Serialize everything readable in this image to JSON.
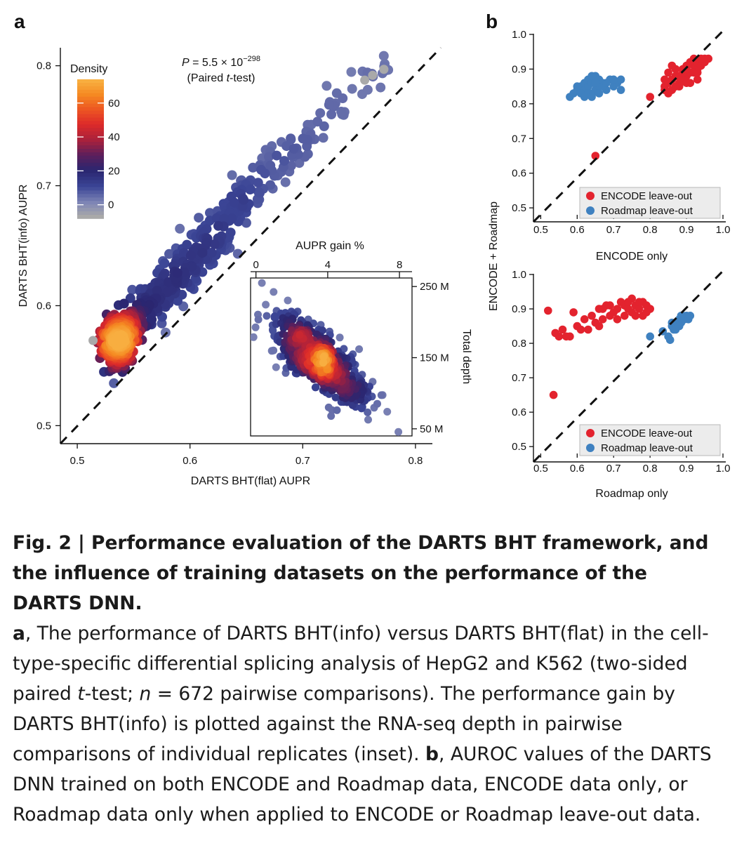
{
  "figure": {
    "panel_a": "a",
    "panel_b": "b"
  },
  "chart_data": [
    {
      "id": "a-main",
      "type": "scatter",
      "xlabel": "DARTS BHT(flat) AUPR",
      "ylabel": "DARTS BHT(info) AUPR",
      "xlim": [
        0.485,
        0.815
      ],
      "ylim": [
        0.485,
        0.815
      ],
      "xticks": [
        "0.5",
        "0.6",
        "0.7",
        "0.8"
      ],
      "yticks": [
        "0.5",
        "0.6",
        "0.7",
        "0.8"
      ],
      "diagonal": true,
      "annotation": {
        "p_prefix": "P",
        "p_value": " = 5.5 × 10",
        "p_exp": "−298",
        "test_open": "(Paired ",
        "test_t": "t",
        "test_close": "-test)"
      },
      "colorbar": {
        "title": "Density",
        "ticks": [
          "0",
          "20",
          "40",
          "60"
        ],
        "range": [
          -8,
          74
        ]
      },
      "outliers": [
        [
          0.514,
          0.571
        ],
        [
          0.755,
          0.788
        ],
        [
          0.762,
          0.792
        ],
        [
          0.772,
          0.797
        ]
      ],
      "point_count": 672
    },
    {
      "id": "a-inset",
      "type": "scatter",
      "xlabel": "AUPR gain %",
      "ylabel": "Total depth",
      "xlim": [
        -0.3,
        8.7
      ],
      "ylim": [
        40,
        262
      ],
      "xticks": [
        "0",
        "4",
        "8"
      ],
      "yticks": [
        "250 M",
        "150 M",
        "50 M"
      ]
    },
    {
      "id": "b-top",
      "type": "scatter",
      "xlabel": "ENCODE only",
      "xlim": [
        0.48,
        1.0
      ],
      "ylim": [
        0.48,
        1.0
      ],
      "xticks": [
        "0.5",
        "0.6",
        "0.7",
        "0.8",
        "0.9",
        "1.0"
      ],
      "yticks": [
        "0.5",
        "0.6",
        "0.7",
        "0.8",
        "0.9",
        "1.0"
      ],
      "legend": "bottom-right",
      "series": [
        {
          "name": "ENCODE leave-out",
          "color": "#e3232e",
          "points": [
            [
              0.65,
              0.65
            ],
            [
              0.8,
              0.82
            ],
            [
              0.84,
              0.85
            ],
            [
              0.85,
              0.83
            ],
            [
              0.86,
              0.84
            ],
            [
              0.87,
              0.88
            ],
            [
              0.88,
              0.86
            ],
            [
              0.89,
              0.9
            ],
            [
              0.9,
              0.88
            ],
            [
              0.91,
              0.89
            ],
            [
              0.92,
              0.91
            ],
            [
              0.93,
              0.9
            ],
            [
              0.94,
              0.92
            ],
            [
              0.95,
              0.93
            ],
            [
              0.96,
              0.93
            ],
            [
              0.84,
              0.87
            ],
            [
              0.85,
              0.89
            ],
            [
              0.86,
              0.87
            ],
            [
              0.87,
              0.9
            ],
            [
              0.88,
              0.88
            ],
            [
              0.89,
              0.87
            ],
            [
              0.9,
              0.91
            ],
            [
              0.91,
              0.92
            ],
            [
              0.92,
              0.89
            ],
            [
              0.93,
              0.92
            ],
            [
              0.94,
              0.91
            ],
            [
              0.95,
              0.92
            ],
            [
              0.86,
              0.91
            ],
            [
              0.88,
              0.85
            ],
            [
              0.9,
              0.86
            ],
            [
              0.91,
              0.86
            ],
            [
              0.93,
              0.87
            ],
            [
              0.84,
              0.84
            ],
            [
              0.87,
              0.85
            ],
            [
              0.89,
              0.89
            ],
            [
              0.92,
              0.93
            ],
            [
              0.94,
              0.93
            ],
            [
              0.85,
              0.86
            ],
            [
              0.93,
              0.89
            ],
            [
              0.9,
              0.9
            ]
          ]
        },
        {
          "name": "Roadmap leave-out",
          "color": "#3f81c0",
          "points": [
            [
              0.58,
              0.82
            ],
            [
              0.59,
              0.83
            ],
            [
              0.6,
              0.84
            ],
            [
              0.61,
              0.85
            ],
            [
              0.62,
              0.86
            ],
            [
              0.62,
              0.84
            ],
            [
              0.63,
              0.85
            ],
            [
              0.63,
              0.87
            ],
            [
              0.64,
              0.86
            ],
            [
              0.64,
              0.83
            ],
            [
              0.65,
              0.88
            ],
            [
              0.65,
              0.84
            ],
            [
              0.66,
              0.87
            ],
            [
              0.66,
              0.85
            ],
            [
              0.67,
              0.86
            ],
            [
              0.68,
              0.84
            ],
            [
              0.69,
              0.87
            ],
            [
              0.7,
              0.85
            ],
            [
              0.71,
              0.86
            ],
            [
              0.72,
              0.84
            ],
            [
              0.72,
              0.87
            ],
            [
              0.6,
              0.85
            ],
            [
              0.61,
              0.83
            ],
            [
              0.63,
              0.83
            ],
            [
              0.64,
              0.88
            ],
            [
              0.65,
              0.86
            ],
            [
              0.66,
              0.83
            ],
            [
              0.67,
              0.85
            ],
            [
              0.68,
              0.86
            ],
            [
              0.7,
              0.87
            ],
            [
              0.62,
              0.82
            ],
            [
              0.64,
              0.82
            ]
          ]
        }
      ]
    },
    {
      "id": "b-bottom",
      "type": "scatter",
      "xlabel": "Roadmap only",
      "xlim": [
        0.48,
        1.0
      ],
      "ylim": [
        0.48,
        1.0
      ],
      "xticks": [
        "0.5",
        "0.6",
        "0.7",
        "0.8",
        "0.9",
        "1.0"
      ],
      "yticks": [
        "0.5",
        "0.6",
        "0.7",
        "0.8",
        "0.9",
        "1.0"
      ],
      "legend": "bottom-right",
      "series": [
        {
          "name": "ENCODE leave-out",
          "color": "#e3232e",
          "points": [
            [
              0.52,
              0.895
            ],
            [
              0.535,
              0.65
            ],
            [
              0.54,
              0.83
            ],
            [
              0.55,
              0.82
            ],
            [
              0.56,
              0.84
            ],
            [
              0.57,
              0.82
            ],
            [
              0.58,
              0.82
            ],
            [
              0.59,
              0.89
            ],
            [
              0.6,
              0.85
            ],
            [
              0.61,
              0.84
            ],
            [
              0.62,
              0.87
            ],
            [
              0.63,
              0.84
            ],
            [
              0.64,
              0.88
            ],
            [
              0.65,
              0.86
            ],
            [
              0.66,
              0.9
            ],
            [
              0.67,
              0.87
            ],
            [
              0.68,
              0.91
            ],
            [
              0.69,
              0.88
            ],
            [
              0.7,
              0.89
            ],
            [
              0.71,
              0.9
            ],
            [
              0.72,
              0.92
            ],
            [
              0.73,
              0.91
            ],
            [
              0.74,
              0.9
            ],
            [
              0.75,
              0.93
            ],
            [
              0.76,
              0.91
            ],
            [
              0.77,
              0.9
            ],
            [
              0.78,
              0.92
            ],
            [
              0.79,
              0.91
            ],
            [
              0.8,
              0.9
            ],
            [
              0.71,
              0.87
            ],
            [
              0.73,
              0.88
            ],
            [
              0.75,
              0.89
            ],
            [
              0.77,
              0.92
            ],
            [
              0.69,
              0.91
            ],
            [
              0.67,
              0.9
            ],
            [
              0.74,
              0.92
            ],
            [
              0.76,
              0.88
            ],
            [
              0.78,
              0.88
            ],
            [
              0.79,
              0.89
            ],
            [
              0.66,
              0.85
            ]
          ]
        },
        {
          "name": "Roadmap leave-out",
          "color": "#3f81c0",
          "points": [
            [
              0.8,
              0.82
            ],
            [
              0.835,
              0.835
            ],
            [
              0.85,
              0.82
            ],
            [
              0.855,
              0.81
            ],
            [
              0.86,
              0.85
            ],
            [
              0.865,
              0.84
            ],
            [
              0.87,
              0.86
            ],
            [
              0.875,
              0.85
            ],
            [
              0.88,
              0.87
            ],
            [
              0.885,
              0.86
            ],
            [
              0.89,
              0.88
            ],
            [
              0.895,
              0.87
            ],
            [
              0.9,
              0.88
            ],
            [
              0.905,
              0.87
            ],
            [
              0.91,
              0.88
            ],
            [
              0.86,
              0.86
            ],
            [
              0.87,
              0.84
            ],
            [
              0.88,
              0.85
            ],
            [
              0.885,
              0.88
            ]
          ]
        }
      ]
    }
  ],
  "caption": {
    "title": "Fig. 2 | Performance evaluation of the DARTS BHT framework, and the influence of training datasets on the performance of the DARTS DNN.",
    "a_label": "a",
    "a_text_1": ", The performance of DARTS BHT(info) versus DARTS BHT(flat) in the cell-type-specific differential splicing analysis of HepG2 and K562 (two-sided paired ",
    "a_t": "t",
    "a_text_2": "-test; ",
    "a_n": "n",
    "a_text_3": " = 672 pairwise comparisons). The performance gain by DARTS BHT(info) is plotted against the RNA-seq depth in pairwise comparisons of individual replicates (inset). ",
    "b_label": "b",
    "b_text": ", AUROC values of the DARTS DNN trained on both ENCODE and Roadmap data, ENCODE data only, or Roadmap data only when applied to ENCODE or Roadmap leave-out data."
  },
  "shared_ylabel_b": "ENCODE + Roadmap"
}
